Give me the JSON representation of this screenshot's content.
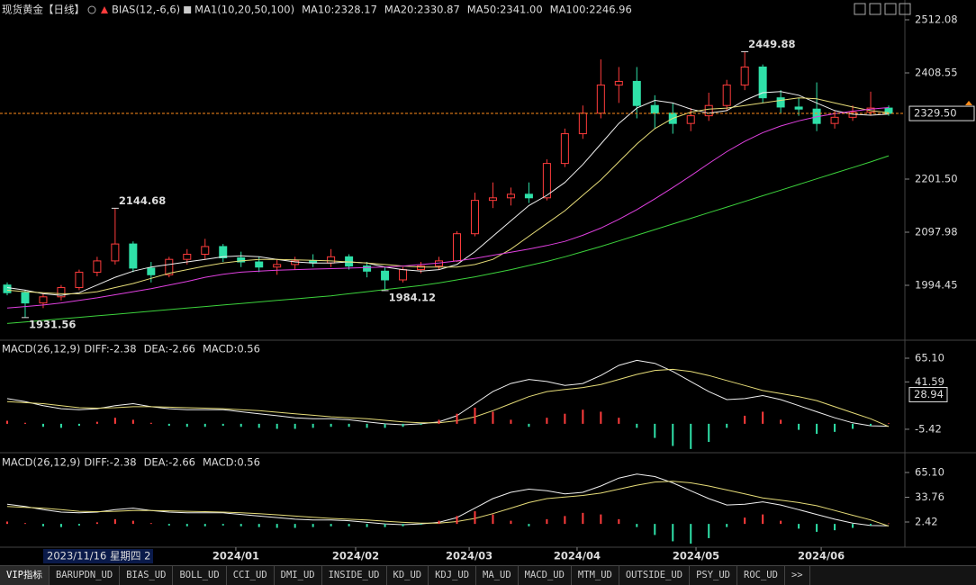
{
  "chart_data": [
    {
      "type": "candlestick",
      "title": "现货黄金【日线】",
      "indicator": "BIAS(12,-6,6)",
      "legend_title": "MA1(10,20,50,100)",
      "up_color": "#ff3c3c",
      "down_color": "#2fe0a8",
      "xlim": [
        -0.4,
        49.4
      ],
      "ylim": [
        1892.68,
        2536.65
      ],
      "yticks": [
        2512.08,
        2408.55,
        {
          "value": 2201.5,
          "label": "2201.50"
        },
        2097.98,
        1994.45
      ],
      "last_price": {
        "value": 2329.5,
        "label": "2329.50",
        "color": "#ff8c1a"
      },
      "ohlc": [
        [
          1995,
          2000,
          1975,
          1980
        ],
        [
          1980,
          1985,
          1931.56,
          1960
        ],
        [
          1960,
          1978,
          1950,
          1972
        ],
        [
          1972,
          1995,
          1965,
          1990
        ],
        [
          1990,
          2025,
          1985,
          2020
        ],
        [
          2020,
          2050,
          2012,
          2042
        ],
        [
          2042,
          2144.68,
          2035,
          2075
        ],
        [
          2075,
          2080,
          2020,
          2028
        ],
        [
          2028,
          2040,
          2000,
          2015
        ],
        [
          2015,
          2050,
          2010,
          2045
        ],
        [
          2045,
          2065,
          2035,
          2055
        ],
        [
          2055,
          2085,
          2045,
          2070
        ],
        [
          2070,
          2075,
          2040,
          2048
        ],
        [
          2048,
          2060,
          2030,
          2040
        ],
        [
          2040,
          2050,
          2020,
          2030
        ],
        [
          2030,
          2045,
          2015,
          2035
        ],
        [
          2035,
          2050,
          2025,
          2042
        ],
        [
          2042,
          2055,
          2030,
          2038
        ],
        [
          2038,
          2065,
          2030,
          2050
        ],
        [
          2050,
          2055,
          2025,
          2032
        ],
        [
          2032,
          2040,
          2010,
          2022
        ],
        [
          2022,
          2030,
          1984.12,
          2005
        ],
        [
          2005,
          2030,
          2000,
          2025
        ],
        [
          2025,
          2040,
          2018,
          2032
        ],
        [
          2032,
          2050,
          2025,
          2042
        ],
        [
          2042,
          2100,
          2040,
          2095
        ],
        [
          2095,
          2175,
          2090,
          2160
        ],
        [
          2160,
          2195,
          2145,
          2165
        ],
        [
          2165,
          2185,
          2150,
          2172
        ],
        [
          2172,
          2195,
          2155,
          2165
        ],
        [
          2165,
          2240,
          2160,
          2232
        ],
        [
          2232,
          2300,
          2225,
          2290
        ],
        [
          2290,
          2345,
          2280,
          2330
        ],
        [
          2330,
          2435,
          2320,
          2385
        ],
        [
          2385,
          2420,
          2350,
          2392
        ],
        [
          2392,
          2420,
          2320,
          2345
        ],
        [
          2345,
          2365,
          2300,
          2330
        ],
        [
          2330,
          2350,
          2290,
          2310
        ],
        [
          2310,
          2340,
          2295,
          2325
        ],
        [
          2325,
          2370,
          2315,
          2345
        ],
        [
          2345,
          2395,
          2335,
          2385
        ],
        [
          2385,
          2449.88,
          2375,
          2420
        ],
        [
          2420,
          2425,
          2350,
          2360
        ],
        [
          2360,
          2375,
          2330,
          2342
        ],
        [
          2342,
          2360,
          2325,
          2338
        ],
        [
          2338,
          2390,
          2295,
          2310
        ],
        [
          2310,
          2335,
          2300,
          2322
        ],
        [
          2322,
          2345,
          2315,
          2332
        ],
        [
          2332,
          2372,
          2325,
          2340
        ],
        [
          2340,
          2345,
          2325,
          2329.5
        ]
      ],
      "series": [
        {
          "name": "MA10:2328.17",
          "color": "#f0f0f0",
          "values": [
            1990,
            1985,
            1978,
            1975,
            1980,
            1995,
            2010,
            2022,
            2030,
            2035,
            2040,
            2045,
            2050,
            2052,
            2050,
            2045,
            2040,
            2038,
            2038,
            2040,
            2038,
            2030,
            2025,
            2022,
            2025,
            2035,
            2060,
            2090,
            2120,
            2150,
            2170,
            2195,
            2230,
            2270,
            2310,
            2340,
            2355,
            2350,
            2338,
            2330,
            2335,
            2355,
            2370,
            2372,
            2365,
            2350,
            2335,
            2328,
            2326,
            2328.17
          ]
        },
        {
          "name": "MA20:2330.87",
          "color": "#e6dc78",
          "values": [
            1985,
            1982,
            1980,
            1978,
            1978,
            1982,
            1990,
            1998,
            2008,
            2018,
            2025,
            2032,
            2038,
            2042,
            2045,
            2045,
            2044,
            2043,
            2042,
            2040,
            2038,
            2035,
            2032,
            2030,
            2030,
            2030,
            2035,
            2045,
            2065,
            2090,
            2115,
            2140,
            2170,
            2200,
            2235,
            2270,
            2300,
            2320,
            2332,
            2338,
            2340,
            2345,
            2350,
            2355,
            2360,
            2358,
            2350,
            2342,
            2335,
            2330.87
          ]
        },
        {
          "name": "MA50:2341.00",
          "color": "#e040e0",
          "values": [
            1950,
            1953,
            1956,
            1960,
            1965,
            1970,
            1976,
            1982,
            1988,
            1995,
            2002,
            2010,
            2016,
            2020,
            2022,
            2024,
            2025,
            2026,
            2027,
            2028,
            2029,
            2030,
            2032,
            2035,
            2038,
            2042,
            2047,
            2053,
            2059,
            2065,
            2072,
            2080,
            2092,
            2106,
            2123,
            2142,
            2163,
            2185,
            2208,
            2232,
            2255,
            2275,
            2292,
            2305,
            2315,
            2323,
            2329,
            2334,
            2338,
            2341
          ]
        },
        {
          "name": "MA100:2246.96",
          "color": "#3cd23c",
          "values": [
            1920,
            1923,
            1926,
            1929,
            1932,
            1935,
            1938,
            1941,
            1944,
            1947,
            1950,
            1953,
            1956,
            1959,
            1962,
            1965,
            1968,
            1971,
            1974,
            1978,
            1982,
            1986,
            1990,
            1994,
            1999,
            2005,
            2011,
            2018,
            2025,
            2033,
            2041,
            2050,
            2060,
            2070,
            2081,
            2092,
            2103,
            2114,
            2125,
            2136,
            2147,
            2158,
            2169,
            2180,
            2191,
            2202,
            2213,
            2224,
            2235,
            2246.96
          ]
        }
      ],
      "annotations": [
        {
          "x": 6,
          "y": 2144.68
        },
        {
          "x": 41,
          "y": 2449.88
        },
        {
          "x": 21,
          "y": 1984.12
        },
        {
          "x": 1,
          "y": 1931.56
        }
      ]
    },
    {
      "type": "macd",
      "title": "MACD(26,12,9)",
      "up_color": "#ff3c3c",
      "down_color": "#2fe0a8",
      "xlim": [
        -0.4,
        49.4
      ],
      "ylim": [
        -26,
        79.4
      ],
      "yticks": [
        {
          "value": 65.1,
          "label": "65.10"
        },
        41.59,
        -5.42
      ],
      "cursor_value": 28.94,
      "series": [
        {
          "name": "DIFF:-2.38",
          "color": "#f0f0f0",
          "style": "line",
          "values": [
            25,
            22,
            18,
            15,
            14,
            15,
            18,
            20,
            17,
            15,
            14,
            14,
            14,
            12,
            10,
            8,
            6,
            5,
            5,
            4,
            2,
            0,
            -1,
            0,
            2,
            8,
            20,
            32,
            40,
            44,
            42,
            38,
            40,
            48,
            58,
            63,
            60,
            52,
            42,
            32,
            24,
            25,
            28,
            24,
            18,
            12,
            6,
            1,
            -2,
            -2.38
          ]
        },
        {
          "name": "DEA:-2.66",
          "color": "#e6dc78",
          "style": "line",
          "values": [
            22,
            21,
            20,
            18,
            16,
            15.5,
            16,
            17,
            17,
            16.5,
            16,
            15.5,
            15,
            14,
            13,
            11.5,
            10,
            8.5,
            7,
            6,
            5,
            3.5,
            2,
            1,
            1,
            3,
            7,
            13,
            20,
            27,
            32,
            34,
            36,
            39,
            44,
            49,
            53,
            54,
            52,
            48,
            43,
            38,
            33,
            30,
            27,
            23,
            17,
            11,
            5,
            -2.66
          ]
        },
        {
          "name": "MACD:0.56",
          "color": "#ff44ff",
          "style": "bar",
          "values": [
            3,
            1,
            -3,
            -4,
            -2,
            2,
            6,
            4,
            1,
            -2,
            -3,
            -3,
            -2,
            -3,
            -4,
            -5,
            -5,
            -4,
            -3,
            -3,
            -4,
            -4,
            -3,
            -1,
            4,
            10,
            16,
            12,
            4,
            -3,
            6,
            10,
            14,
            12,
            6,
            -4,
            -14,
            -22,
            -25,
            -18,
            -4,
            8,
            12,
            4,
            -6,
            -10,
            -8,
            -5,
            -2,
            0.56
          ]
        }
      ]
    },
    {
      "type": "macd",
      "title": "MACD(26,12,9)",
      "up_color": "#ff3c3c",
      "down_color": "#2fe0a8",
      "xlim": [
        -0.4,
        49.4
      ],
      "ylim": [
        -27.2,
        86.75
      ],
      "yticks": [
        {
          "value": 65.1,
          "label": "65.10"
        },
        33.76,
        2.42
      ],
      "xticks": [
        {
          "value": 12.71,
          "label": "2024/01"
        },
        {
          "value": 19.37,
          "label": "2024/02"
        },
        {
          "value": 25.68,
          "label": "2024/03"
        },
        {
          "value": 31.68,
          "label": "2024/04"
        },
        {
          "value": 38.29,
          "label": "2024/05"
        },
        {
          "value": 45.25,
          "label": "2024/06"
        }
      ],
      "cursor_label": "2023/11/16 星期四 2",
      "series": [
        {
          "name": "DIFF:-2.38",
          "color": "#f0f0f0",
          "style": "line",
          "values": [
            25,
            22,
            18,
            15,
            14,
            15,
            18,
            20,
            17,
            15,
            14,
            14,
            14,
            12,
            10,
            8,
            6,
            5,
            5,
            4,
            2,
            0,
            -1,
            0,
            2,
            8,
            20,
            32,
            40,
            44,
            42,
            38,
            40,
            48,
            58,
            63,
            60,
            52,
            42,
            32,
            24,
            25,
            28,
            24,
            18,
            12,
            6,
            1,
            -2,
            -2.38
          ]
        },
        {
          "name": "DEA:-2.66",
          "color": "#e6dc78",
          "style": "line",
          "values": [
            22,
            21,
            20,
            18,
            16,
            15.5,
            16,
            17,
            17,
            16.5,
            16,
            15.5,
            15,
            14,
            13,
            11.5,
            10,
            8.5,
            7,
            6,
            5,
            3.5,
            2,
            1,
            1,
            3,
            7,
            13,
            20,
            27,
            32,
            34,
            36,
            39,
            44,
            49,
            53,
            54,
            52,
            48,
            43,
            38,
            33,
            30,
            27,
            23,
            17,
            11,
            5,
            -2.66
          ]
        },
        {
          "name": "MACD:0.56",
          "color": "#ff44ff",
          "style": "bar",
          "values": [
            3,
            1,
            -3,
            -4,
            -2,
            2,
            6,
            4,
            1,
            -2,
            -3,
            -3,
            -2,
            -3,
            -4,
            -5,
            -5,
            -4,
            -3,
            -3,
            -4,
            -4,
            -3,
            -1,
            4,
            10,
            16,
            12,
            4,
            -3,
            6,
            10,
            14,
            12,
            6,
            -4,
            -14,
            -22,
            -25,
            -18,
            -4,
            8,
            12,
            4,
            -6,
            -10,
            -8,
            -5,
            -2,
            0.56
          ]
        }
      ]
    }
  ],
  "tabs": [
    "VIP指标",
    "BARUPDN_UD",
    "BIAS_UD",
    "BOLL_UD",
    "CCI_UD",
    "DMI_UD",
    "INSIDE_UD",
    "KD_UD",
    "KDJ_UD",
    "MA_UD",
    "MACD_UD",
    "MTM_UD",
    "OUTSIDE_UD",
    "PSY_UD",
    "ROC_UD",
    ">>"
  ]
}
